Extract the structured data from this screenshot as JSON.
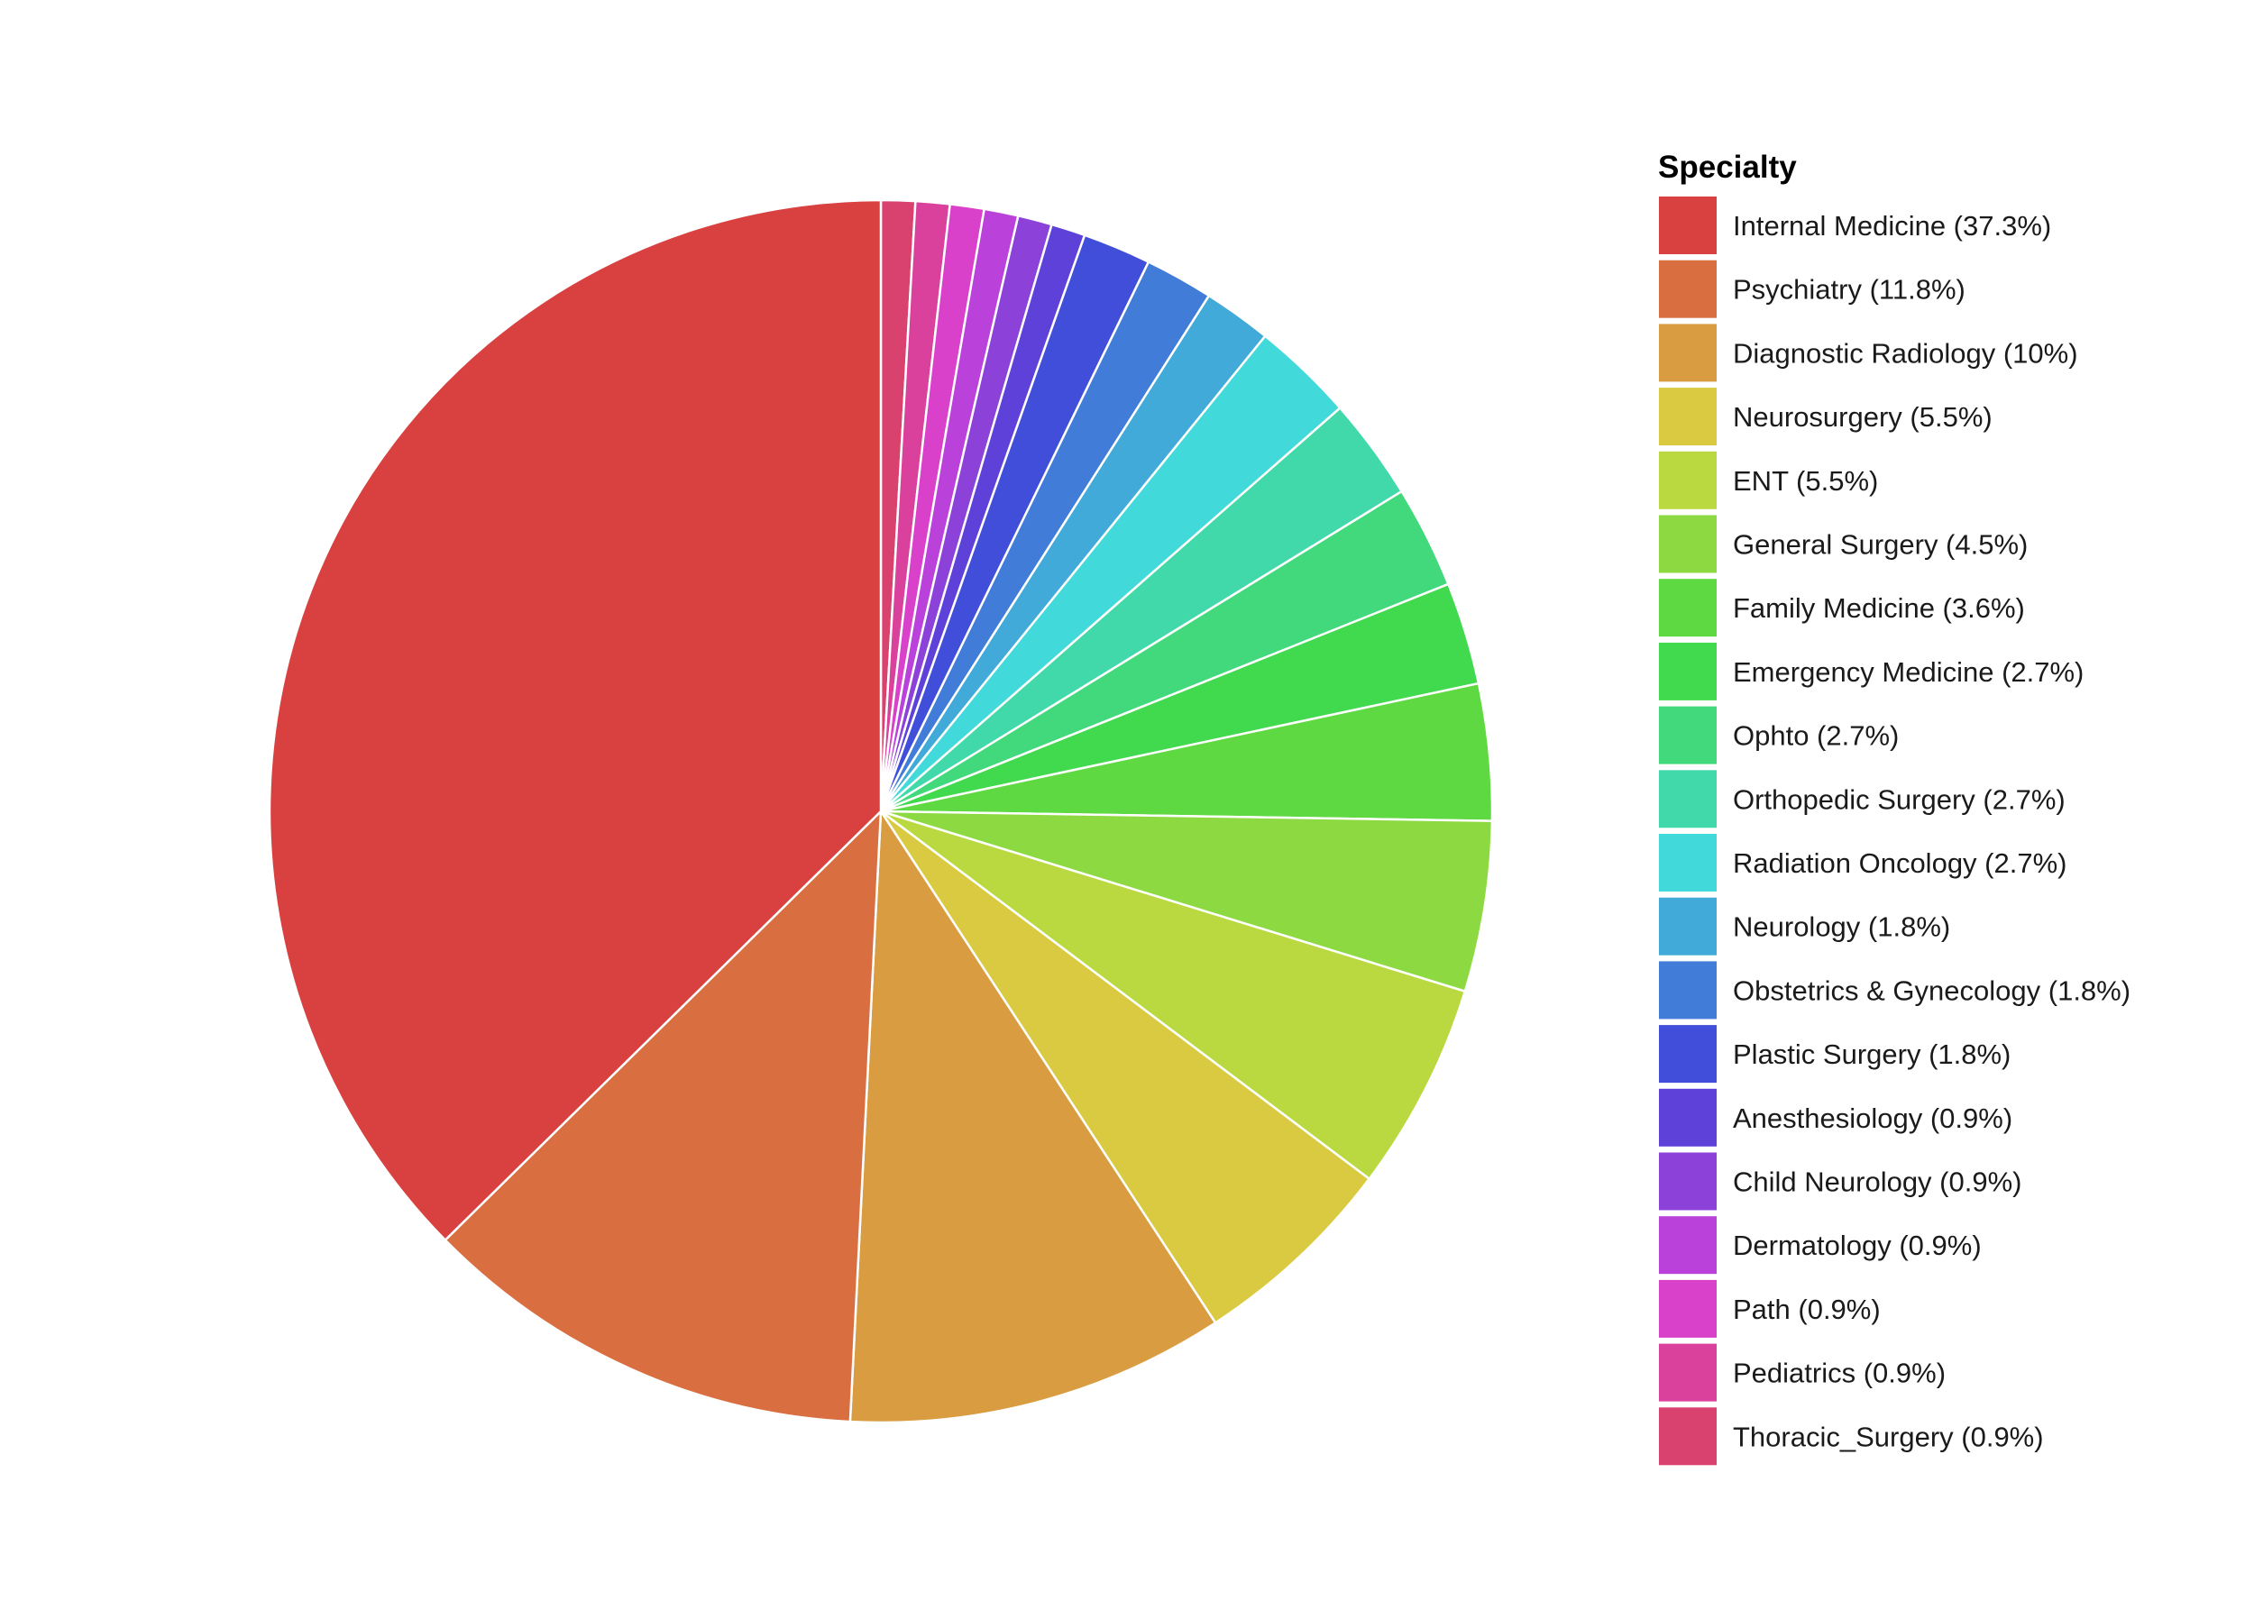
{
  "chart_data": {
    "type": "pie",
    "legend_title": "Specialty",
    "legend_position": "right",
    "start_angle": "top (12 o'clock)",
    "direction": "clockwise from top, legend order reversed",
    "slice_border_color": "#ffffff",
    "slices": [
      {
        "label": "Internal Medicine (37.3%)",
        "value": 37.3,
        "color": "#D94141"
      },
      {
        "label": "Psychiatry (11.8%)",
        "value": 11.8,
        "color": "#D96F41"
      },
      {
        "label": "Diagnostic Radiology (10%)",
        "value": 10.0,
        "color": "#D99C41"
      },
      {
        "label": "Neurosurgery (5.5%)",
        "value": 5.5,
        "color": "#D9CA41"
      },
      {
        "label": "ENT (5.5%)",
        "value": 5.5,
        "color": "#BAD941"
      },
      {
        "label": "General Surgery (4.5%)",
        "value": 4.5,
        "color": "#8CD941"
      },
      {
        "label": "Family Medicine (3.6%)",
        "value": 3.6,
        "color": "#5ED941"
      },
      {
        "label": "Emergency Medicine (2.7%)",
        "value": 2.7,
        "color": "#41D94E"
      },
      {
        "label": "Ophto (2.7%)",
        "value": 2.7,
        "color": "#41D97C"
      },
      {
        "label": "Orthopedic Surgery (2.7%)",
        "value": 2.7,
        "color": "#41D9AA"
      },
      {
        "label": "Radiation Oncology (2.7%)",
        "value": 2.7,
        "color": "#41D9D9"
      },
      {
        "label": "Neurology (1.8%)",
        "value": 1.8,
        "color": "#41AAD9"
      },
      {
        "label": "Obstetrics & Gynecology (1.8%)",
        "value": 1.8,
        "color": "#417CD9"
      },
      {
        "label": "Plastic Surgery (1.8%)",
        "value": 1.8,
        "color": "#414ED9"
      },
      {
        "label": "Anesthesiology (0.9%)",
        "value": 0.9,
        "color": "#5E41D9"
      },
      {
        "label": "Child Neurology (0.9%)",
        "value": 0.9,
        "color": "#8C41D9"
      },
      {
        "label": "Dermatology (0.9%)",
        "value": 0.9,
        "color": "#BA41D9"
      },
      {
        "label": "Path (0.9%)",
        "value": 0.9,
        "color": "#D941CA"
      },
      {
        "label": "Pediatrics (0.9%)",
        "value": 0.9,
        "color": "#D9419C"
      },
      {
        "label": "Thoracic_Surgery (0.9%)",
        "value": 0.9,
        "color": "#D9416F"
      }
    ]
  }
}
